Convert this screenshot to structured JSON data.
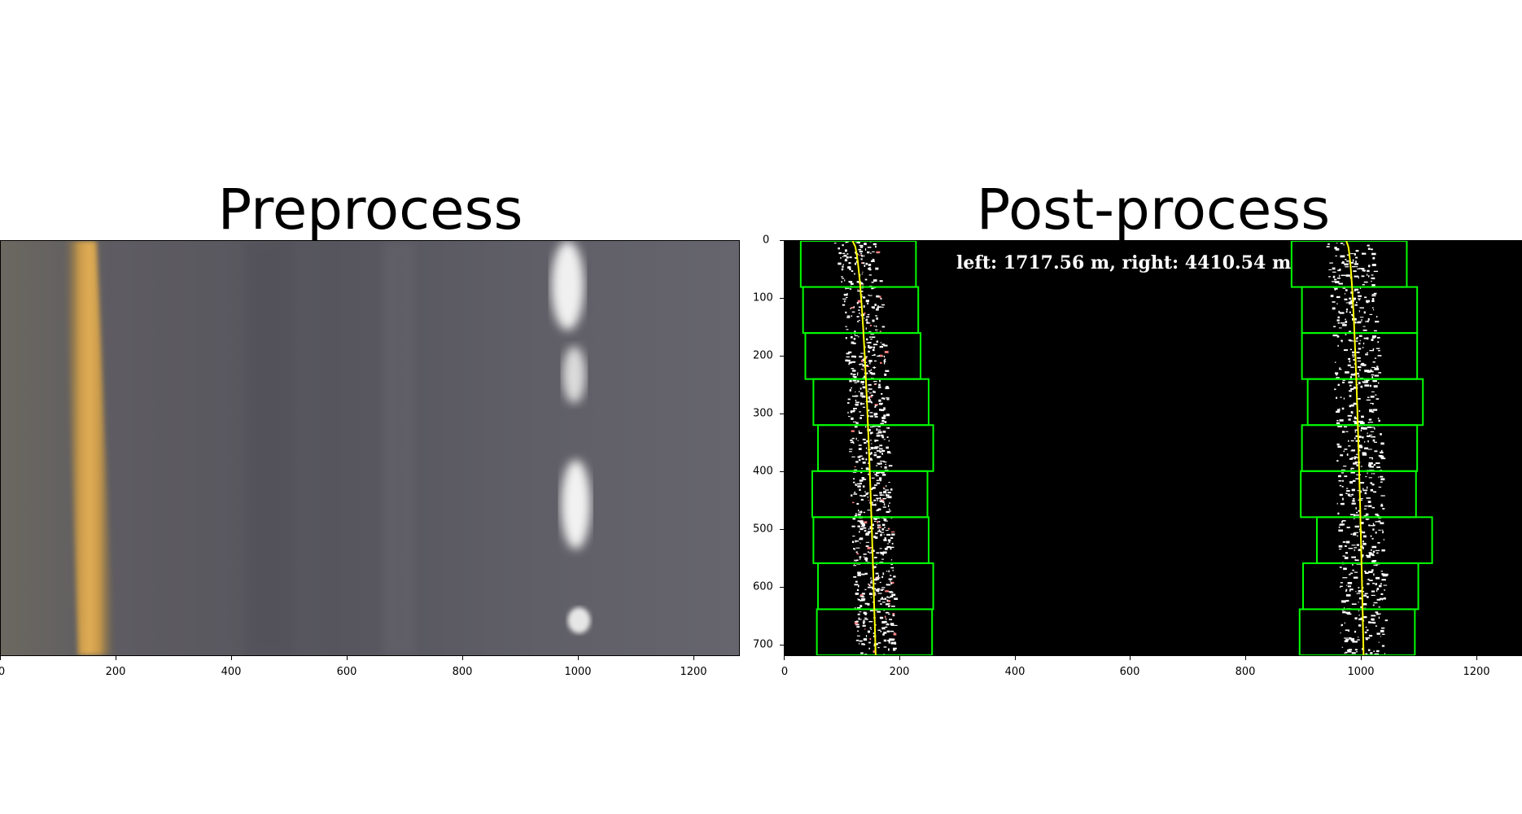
{
  "left_panel": {
    "title": "Preprocess",
    "x_ticks": [
      "0",
      "200",
      "400",
      "600",
      "800",
      "1000",
      "1200"
    ]
  },
  "right_panel": {
    "title": "Post-process",
    "annotation": "left: 1717.56 m, right: 4410.54 m",
    "x_ticks": [
      "0",
      "200",
      "400",
      "600",
      "800",
      "1000",
      "1200"
    ],
    "y_ticks": [
      "0",
      "100",
      "200",
      "300",
      "400",
      "500",
      "600",
      "700"
    ],
    "window_color": "#00ff00",
    "fit_line_color": "#ffff00"
  },
  "colors": {
    "road": "#5c5b63",
    "lane_yellow": "#d9a545",
    "lane_white": "#f2f2f2"
  }
}
